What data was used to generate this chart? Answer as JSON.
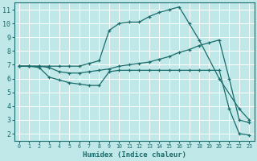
{
  "xlabel": "Humidex (Indice chaleur)",
  "bg_color": "#c0e8e8",
  "line_color": "#1a6b6b",
  "grid_color": "#ffffff",
  "xlim": [
    -0.5,
    23.5
  ],
  "ylim": [
    1.5,
    11.5
  ],
  "xticks": [
    0,
    1,
    2,
    3,
    4,
    5,
    6,
    7,
    8,
    9,
    10,
    11,
    12,
    13,
    14,
    15,
    16,
    17,
    18,
    19,
    20,
    21,
    22,
    23
  ],
  "yticks": [
    2,
    3,
    4,
    5,
    6,
    7,
    8,
    9,
    10,
    11
  ],
  "line_max": {
    "x": [
      0,
      1,
      2,
      3,
      4,
      5,
      6,
      7,
      8,
      9,
      10,
      11,
      12,
      13,
      14,
      15,
      16,
      17,
      18,
      20,
      22,
      23
    ],
    "y": [
      6.9,
      6.9,
      6.9,
      6.9,
      6.9,
      6.9,
      6.9,
      7.1,
      7.3,
      9.5,
      10.0,
      10.1,
      10.1,
      10.5,
      10.8,
      11.0,
      11.2,
      10.0,
      8.8,
      6.0,
      3.8,
      3.0
    ]
  },
  "line_avg": {
    "x": [
      0,
      1,
      2,
      3,
      4,
      5,
      6,
      7,
      8,
      9,
      10,
      11,
      12,
      13,
      14,
      15,
      16,
      17,
      18,
      19,
      20,
      21,
      22,
      23
    ],
    "y": [
      6.9,
      6.9,
      6.9,
      6.8,
      6.5,
      6.4,
      6.4,
      6.5,
      6.6,
      6.7,
      6.9,
      7.0,
      7.1,
      7.2,
      7.4,
      7.6,
      7.9,
      8.1,
      8.4,
      8.6,
      8.8,
      6.0,
      3.0,
      2.8
    ]
  },
  "line_min": {
    "x": [
      0,
      1,
      2,
      3,
      4,
      5,
      6,
      7,
      8,
      9,
      10,
      11,
      12,
      13,
      14,
      15,
      16,
      17,
      18,
      19,
      20,
      21,
      22,
      23
    ],
    "y": [
      6.9,
      6.9,
      6.8,
      6.1,
      5.9,
      5.7,
      5.6,
      5.5,
      5.5,
      6.5,
      6.6,
      6.6,
      6.6,
      6.6,
      6.6,
      6.6,
      6.6,
      6.6,
      6.6,
      6.6,
      6.6,
      3.8,
      2.0,
      1.9
    ]
  }
}
